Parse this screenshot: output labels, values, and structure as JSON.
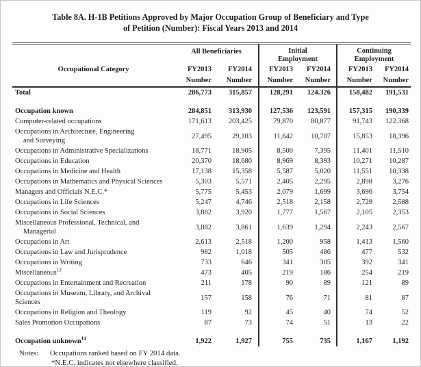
{
  "title": {
    "line1": "Table 8A.  H-1B Petitions Approved by Major Occupation Group of Beneficiary and Type",
    "line2": "of Petition (Number):  Fiscal Years 2013 and 2014"
  },
  "header": {
    "label": "Occupational Category",
    "groups": [
      {
        "name": "All Beneficiaries"
      },
      {
        "name": "Initial Employment"
      },
      {
        "name": "Continuing Employment"
      }
    ],
    "year_cols": [
      "FY2013",
      "FY2014"
    ],
    "unit": "Number"
  },
  "rows": [
    {
      "label": "Total",
      "bold": true,
      "values": [
        "286,773",
        "315,857",
        "128,291",
        "124.326",
        "158,482",
        "191,531"
      ]
    },
    {
      "spacer": true
    },
    {
      "label": "Occupation known",
      "bold": true,
      "values": [
        "284,851",
        "313,930",
        "127,536",
        "123,591",
        "157,315",
        "190,339"
      ]
    },
    {
      "label": "Computer-related occupations",
      "values": [
        "171,613",
        "203,425",
        "79,870",
        "80,877",
        "91,743",
        "122.368"
      ]
    },
    {
      "label": "Occupations in Architecture, Engineering",
      "label2": "and Surveying",
      "label2_indent": true,
      "values": [
        "27,495",
        "29,103",
        "11,642",
        "10,707",
        "15,853",
        "18,396"
      ]
    },
    {
      "label": "Occupations in Administrative Specializations",
      "values": [
        "18,771",
        "18,905",
        "8,500",
        "7,395",
        "11,401",
        "11,510"
      ]
    },
    {
      "label": "Occupations in Education",
      "values": [
        "20,370",
        "18,680",
        "8,969",
        "8,393",
        "10,271",
        "10,287"
      ]
    },
    {
      "label": "Occupations in Medicine and Health",
      "values": [
        "17,138",
        "15,358",
        "5,587",
        "5,020",
        "11,551",
        "10,338"
      ]
    },
    {
      "label": "Occupations in Mathematics and Physical Sciences",
      "values": [
        "5,303",
        "5,571",
        "2,405",
        "2,295",
        "2,898",
        "3,276"
      ]
    },
    {
      "label": "Managers and Officials N.E.C.*",
      "values": [
        "5,775",
        "5,453",
        "2,079",
        "1,699",
        "3,696",
        "3,754"
      ]
    },
    {
      "label": "Occupations in Life Sciences",
      "values": [
        "5,247",
        "4,746",
        "2,518",
        "2,158",
        "2,729",
        "2,588"
      ]
    },
    {
      "label": "Occupations in Social Sciences",
      "values": [
        "3,882",
        "3,920",
        "1,777",
        "1,567",
        "2,105",
        "2,353"
      ]
    },
    {
      "label": "Miscellaneous Professional, Technical, and",
      "label2": "Managerial",
      "label2_indent": true,
      "values": [
        "3,882",
        "3,861",
        "1,639",
        "1,294",
        "2,243",
        "2,567"
      ]
    },
    {
      "label": "Occupations in Art",
      "values": [
        "2,613",
        "2,518",
        "1,200",
        "958",
        "1,413",
        "1,560"
      ]
    },
    {
      "label": "Occupations in Law and Jurisprudence",
      "values": [
        "982",
        "1,018",
        "505",
        "486",
        "477",
        "532"
      ]
    },
    {
      "label": "Occupations in Writing",
      "values": [
        "733",
        "646",
        "341",
        "305",
        "392",
        "341"
      ]
    },
    {
      "label": "Miscellaneous",
      "sup": "13",
      "values": [
        "473",
        "405",
        "219",
        "186",
        "254",
        "219"
      ]
    },
    {
      "label": "Occupations in Entertainment and Recreation",
      "values": [
        "211",
        "178",
        "90",
        "89",
        "121",
        "89"
      ]
    },
    {
      "label": "Occupations in Museum, Library, and Archival",
      "label2": "Sciences",
      "label2_indent": false,
      "values": [
        "157",
        "158",
        "76",
        "71",
        "81",
        "87"
      ]
    },
    {
      "label": "Occupations in Religion and Theology",
      "values": [
        "119",
        "92",
        "45",
        "40",
        "74",
        "52"
      ]
    },
    {
      "label": "Sales Promotion Occupations",
      "values": [
        "87",
        "73",
        "74",
        "51",
        "13",
        "22"
      ]
    },
    {
      "spacer": true
    },
    {
      "label": "Occupation unknown",
      "sup": "14",
      "bold": true,
      "values": [
        "1,922",
        "1,927",
        "755",
        "735",
        "1,167",
        "1,192"
      ]
    }
  ],
  "notes": {
    "label": "Notes:",
    "line1": "Occupations ranked based on FY 2014 data.",
    "line2": "*N.E.C. indicates not elsewhere classified."
  }
}
